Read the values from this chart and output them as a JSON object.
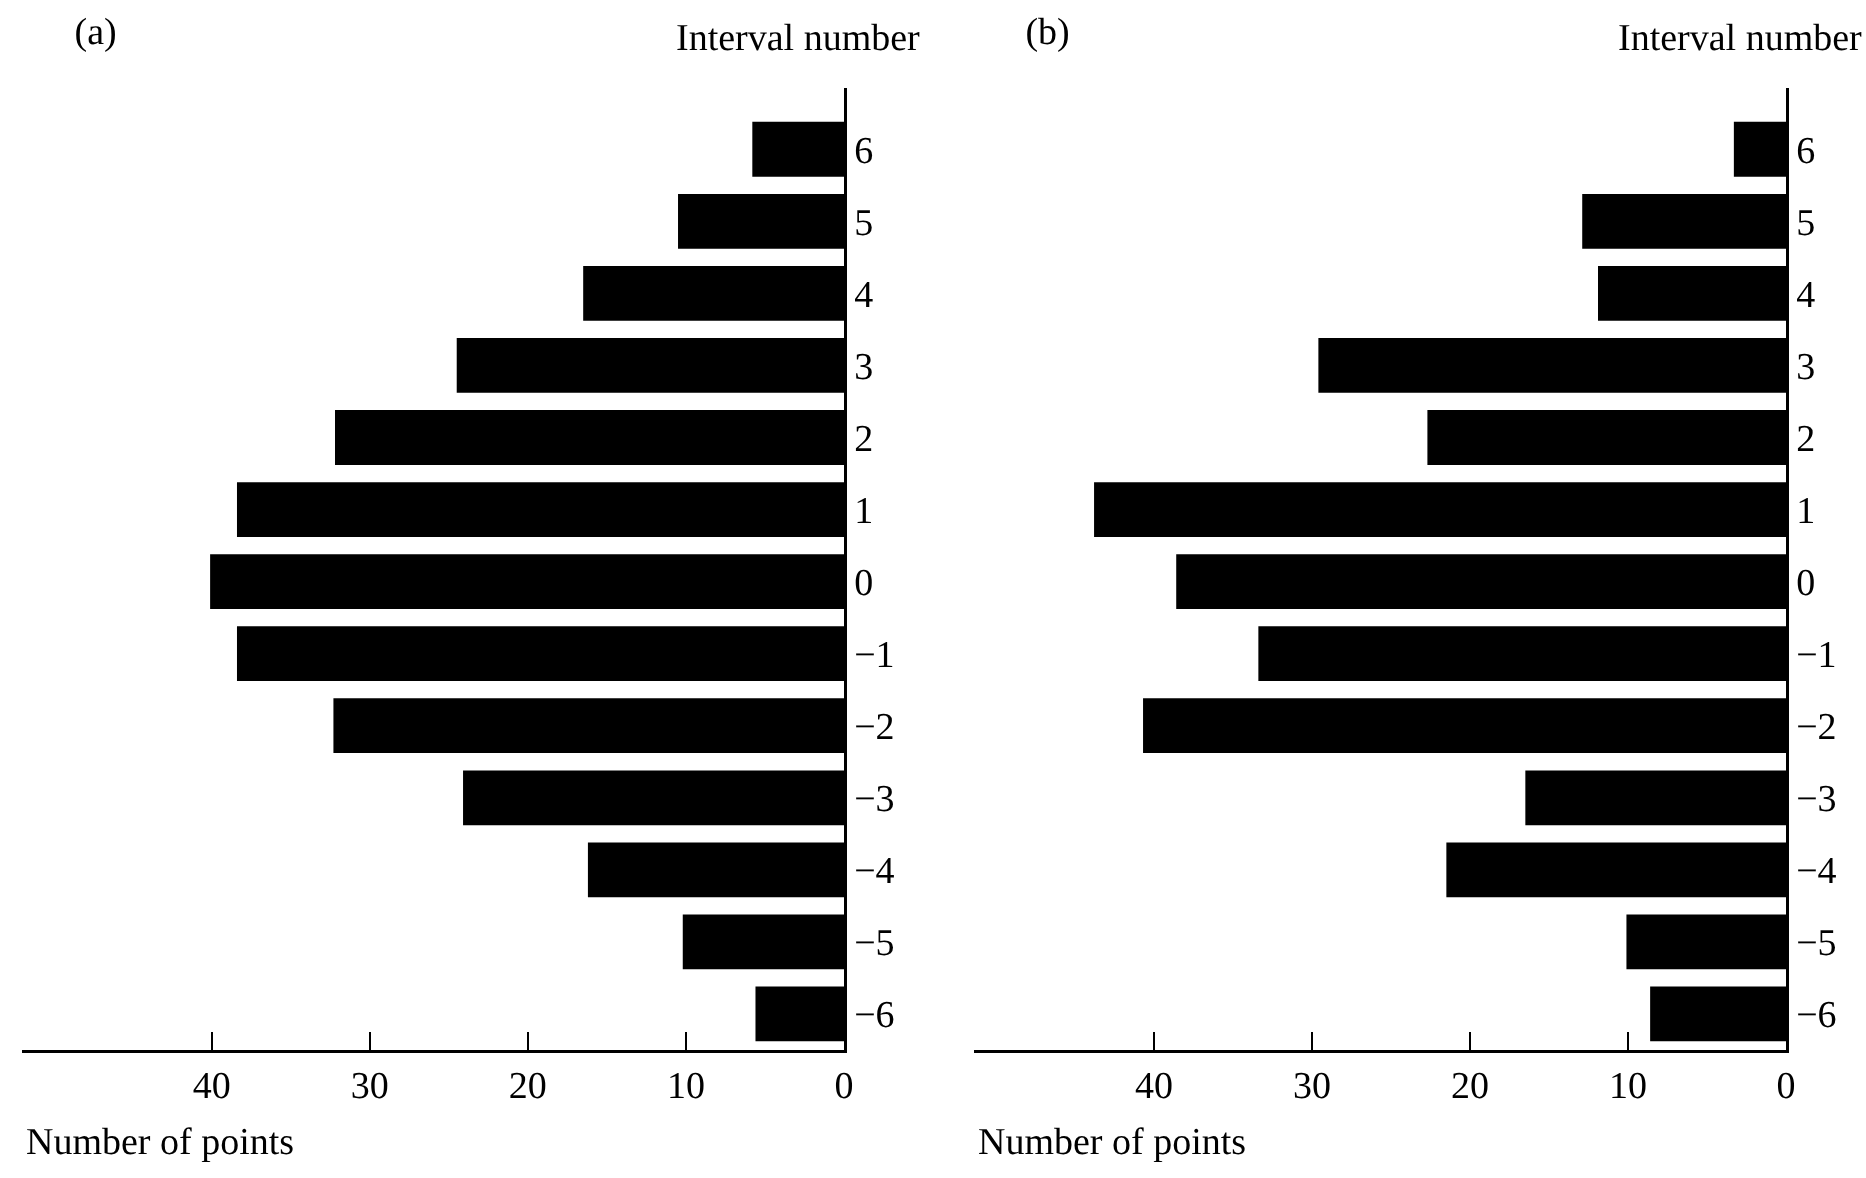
{
  "chart_data": [
    {
      "type": "bar",
      "orientation": "horizontal",
      "title": "(a)",
      "xlabel": "Number of points",
      "ylabel": "Interval number",
      "categories": [
        "6",
        "5",
        "4",
        "3",
        "2",
        "1",
        "0",
        "−1",
        "−2",
        "−3",
        "−4",
        "−5",
        "−6"
      ],
      "values": [
        5.8,
        10.5,
        16.5,
        24.5,
        32.2,
        38.4,
        40.1,
        38.4,
        32.3,
        24.1,
        16.2,
        10.2,
        5.6
      ],
      "color": "#000000",
      "xlim": [
        52,
        0
      ],
      "xticks": [
        40,
        30,
        20,
        10,
        0
      ]
    },
    {
      "type": "bar",
      "orientation": "horizontal",
      "title": "(b)",
      "xlabel": "Number of points",
      "ylabel": "Interval number",
      "categories": [
        "6",
        "5",
        "4",
        "3",
        "2",
        "1",
        "0",
        "−1",
        "−2",
        "−3",
        "−4",
        "−5",
        "−6"
      ],
      "values": [
        3.3,
        12.9,
        11.9,
        29.6,
        22.7,
        43.8,
        38.6,
        33.4,
        40.7,
        16.5,
        21.5,
        10.1,
        8.6
      ],
      "color": "#000000",
      "xlim": [
        51.4,
        0
      ],
      "xticks": [
        40,
        30,
        20,
        10,
        0
      ]
    }
  ]
}
